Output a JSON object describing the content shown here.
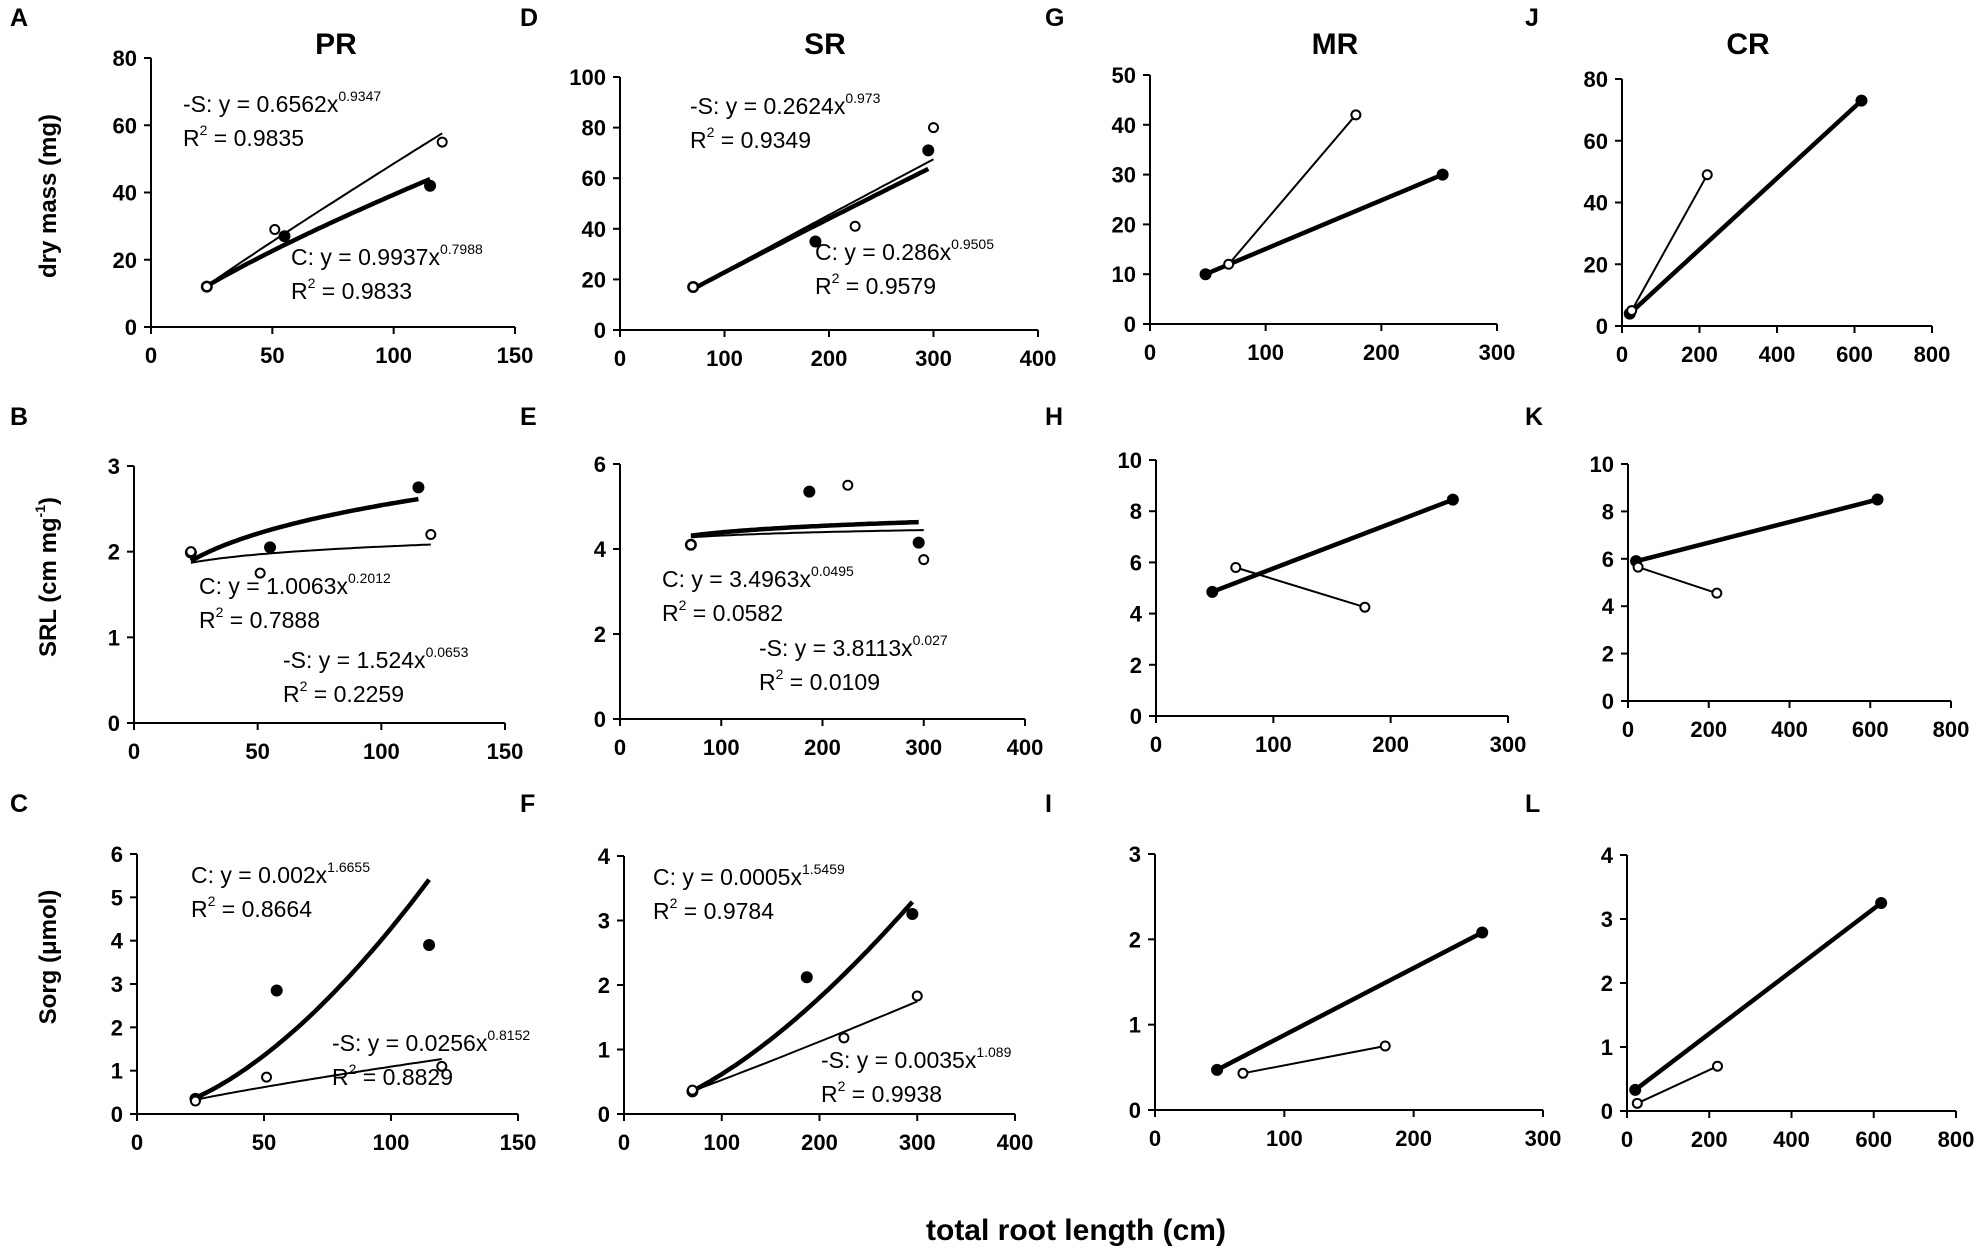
{
  "figure": {
    "xlabel": "total root length (cm)",
    "row_ylabels": [
      "dry mass (mg)",
      "SRL (cm mg-1)",
      "Sorg (μmol)"
    ],
    "column_titles": [
      "PR",
      "SR",
      "MR",
      "CR"
    ]
  },
  "chart_data": [
    {
      "id": "A",
      "type": "scatter",
      "letter": "A",
      "title": "PR",
      "ylabel": "dry mass (mg)",
      "xlim": [
        0,
        150
      ],
      "xticks": [
        0,
        50,
        100,
        150
      ],
      "ylim": [
        0,
        80
      ],
      "yticks": [
        0,
        20,
        40,
        60,
        80
      ],
      "series": [
        {
          "name": "C",
          "marker": "filled",
          "x": [
            23,
            55,
            115
          ],
          "y": [
            12,
            27,
            42
          ],
          "fit": {
            "kind": "power",
            "a": 0.9937,
            "b": 0.7988,
            "x_range": [
              23,
              115
            ]
          }
        },
        {
          "name": "-S",
          "marker": "open",
          "x": [
            23,
            51,
            120
          ],
          "y": [
            12,
            29,
            55
          ],
          "fit": {
            "kind": "power",
            "a": 0.6562,
            "b": 0.9347,
            "x_range": [
              23,
              120
            ]
          }
        }
      ],
      "annotations": [
        {
          "series": "-S",
          "line1_pre": "-S: y = 0.6562x",
          "exp": "0.9347",
          "line2_pre": "R",
          "line2_post": " = 0.9835"
        },
        {
          "series": "C",
          "line1_pre": "C: y = 0.9937x",
          "exp": "0.7988",
          "line2_pre": "R",
          "line2_post": " = 0.9833"
        }
      ]
    },
    {
      "id": "B",
      "type": "scatter",
      "letter": "B",
      "title": "",
      "ylabel": "SRL (cm mg-1)",
      "xlim": [
        0,
        150
      ],
      "xticks": [
        0,
        50,
        100,
        150
      ],
      "ylim": [
        0,
        3
      ],
      "yticks": [
        0,
        1,
        2,
        3
      ],
      "series": [
        {
          "name": "C",
          "marker": "filled",
          "x": [
            23,
            55,
            115
          ],
          "y": [
            1.99,
            2.05,
            2.75
          ],
          "fit": {
            "kind": "power",
            "a": 1.0063,
            "b": 0.2012,
            "x_range": [
              23,
              115
            ]
          }
        },
        {
          "name": "-S",
          "marker": "open",
          "x": [
            23,
            51,
            120
          ],
          "y": [
            2.0,
            1.75,
            2.2
          ],
          "fit": {
            "kind": "power",
            "a": 1.524,
            "b": 0.0653,
            "x_range": [
              23,
              120
            ]
          }
        }
      ],
      "annotations": [
        {
          "series": "C",
          "line1_pre": "C: y = 1.0063x",
          "exp": "0.2012",
          "line2_pre": "R",
          "line2_post": " = 0.7888"
        },
        {
          "series": "-S",
          "line1_pre": "-S: y = 1.524x",
          "exp": "0.0653",
          "line2_pre": "R",
          "line2_post": " = 0.2259"
        }
      ]
    },
    {
      "id": "C",
      "type": "scatter",
      "letter": "C",
      "title": "",
      "ylabel": "Sorg (μmol)",
      "xlim": [
        0,
        150
      ],
      "xticks": [
        0,
        50,
        100,
        150
      ],
      "ylim": [
        0,
        6
      ],
      "yticks": [
        0,
        1,
        2,
        3,
        4,
        5,
        6
      ],
      "series": [
        {
          "name": "C",
          "marker": "filled",
          "x": [
            23,
            55,
            115
          ],
          "y": [
            0.35,
            2.85,
            3.9
          ],
          "fit": {
            "kind": "power",
            "a": 0.002,
            "b": 1.6655,
            "x_range": [
              23,
              115
            ]
          }
        },
        {
          "name": "-S",
          "marker": "open",
          "x": [
            23,
            51,
            120
          ],
          "y": [
            0.3,
            0.85,
            1.1
          ],
          "fit": {
            "kind": "power",
            "a": 0.0256,
            "b": 0.8152,
            "x_range": [
              23,
              120
            ]
          }
        }
      ],
      "annotations": [
        {
          "series": "C",
          "line1_pre": "C: y = 0.002x",
          "exp": "1.6655",
          "line2_pre": "R",
          "line2_post": " = 0.8664"
        },
        {
          "series": "-S",
          "line1_pre": "-S: y = 0.0256x",
          "exp": "0.8152",
          "line2_pre": "R",
          "line2_post": " = 0.8829"
        }
      ]
    },
    {
      "id": "D",
      "type": "scatter",
      "letter": "D",
      "title": "SR",
      "ylabel": "",
      "xlim": [
        0,
        400
      ],
      "xticks": [
        0,
        100,
        200,
        300,
        400
      ],
      "ylim": [
        0,
        100
      ],
      "yticks": [
        0,
        20,
        40,
        60,
        80,
        100
      ],
      "series": [
        {
          "name": "C",
          "marker": "filled",
          "x": [
            70,
            187,
            295
          ],
          "y": [
            17,
            35,
            71
          ],
          "fit": {
            "kind": "power",
            "a": 0.286,
            "b": 0.9505,
            "x_range": [
              70,
              295
            ]
          }
        },
        {
          "name": "-S",
          "marker": "open",
          "x": [
            70,
            225,
            300
          ],
          "y": [
            17,
            41,
            80
          ],
          "fit": {
            "kind": "power",
            "a": 0.2624,
            "b": 0.973,
            "x_range": [
              70,
              300
            ]
          }
        }
      ],
      "annotations": [
        {
          "series": "-S",
          "line1_pre": "-S: y = 0.2624x",
          "exp": "0.973",
          "line2_pre": "R",
          "line2_post": " = 0.9349"
        },
        {
          "series": "C",
          "line1_pre": "C: y = 0.286x",
          "exp": "0.9505",
          "line2_pre": "R",
          "line2_post": " = 0.9579"
        }
      ]
    },
    {
      "id": "E",
      "type": "scatter",
      "letter": "E",
      "title": "",
      "ylabel": "",
      "xlim": [
        0,
        400
      ],
      "xticks": [
        0,
        100,
        200,
        300,
        400
      ],
      "ylim": [
        0,
        6
      ],
      "yticks": [
        0,
        2,
        4,
        6
      ],
      "series": [
        {
          "name": "C",
          "marker": "filled",
          "x": [
            70,
            187,
            295
          ],
          "y": [
            4.1,
            5.35,
            4.15
          ],
          "fit": {
            "kind": "power",
            "a": 3.4963,
            "b": 0.0495,
            "x_range": [
              70,
              295
            ]
          }
        },
        {
          "name": "-S",
          "marker": "open",
          "x": [
            70,
            225,
            300
          ],
          "y": [
            4.1,
            5.5,
            3.75
          ],
          "fit": {
            "kind": "power",
            "a": 3.8113,
            "b": 0.027,
            "x_range": [
              70,
              300
            ]
          }
        }
      ],
      "annotations": [
        {
          "series": "C",
          "line1_pre": "C: y = 3.4963x",
          "exp": "0.0495",
          "line2_pre": "R",
          "line2_post": " = 0.0582"
        },
        {
          "series": "-S",
          "line1_pre": "-S: y = 3.8113x",
          "exp": "0.027",
          "line2_pre": "R",
          "line2_post": " = 0.0109"
        }
      ]
    },
    {
      "id": "F",
      "type": "scatter",
      "letter": "F",
      "title": "",
      "ylabel": "",
      "xlim": [
        0,
        400
      ],
      "xticks": [
        0,
        100,
        200,
        300,
        400
      ],
      "ylim": [
        0,
        4
      ],
      "yticks": [
        0,
        1,
        2,
        3,
        4
      ],
      "series": [
        {
          "name": "C",
          "marker": "filled",
          "x": [
            70,
            187,
            295
          ],
          "y": [
            0.35,
            2.12,
            3.1
          ],
          "fit": {
            "kind": "power",
            "a": 0.0005,
            "b": 1.5459,
            "x_range": [
              70,
              295
            ]
          }
        },
        {
          "name": "-S",
          "marker": "open",
          "x": [
            70,
            225,
            300
          ],
          "y": [
            0.37,
            1.18,
            1.83
          ],
          "fit": {
            "kind": "power",
            "a": 0.0035,
            "b": 1.089,
            "x_range": [
              70,
              300
            ]
          }
        }
      ],
      "annotations": [
        {
          "series": "C",
          "line1_pre": "C: y = 0.0005x",
          "exp": "1.5459",
          "line2_pre": "R",
          "line2_post": " = 0.9784"
        },
        {
          "series": "-S",
          "line1_pre": "-S: y = 0.0035x",
          "exp": "1.089",
          "line2_pre": "R",
          "line2_post": " = 0.9938"
        }
      ]
    },
    {
      "id": "G",
      "type": "line",
      "letter": "G",
      "title": "MR",
      "ylabel": "",
      "xlim": [
        0,
        300
      ],
      "xticks": [
        0,
        100,
        200,
        300
      ],
      "ylim": [
        0,
        50
      ],
      "yticks": [
        0,
        10,
        20,
        30,
        40,
        50
      ],
      "series": [
        {
          "name": "C",
          "marker": "filled",
          "x": [
            48,
            253
          ],
          "y": [
            10,
            30
          ]
        },
        {
          "name": "-S",
          "marker": "open",
          "x": [
            68,
            178
          ],
          "y": [
            12,
            42
          ]
        }
      ],
      "annotations": []
    },
    {
      "id": "H",
      "type": "line",
      "letter": "H",
      "title": "",
      "ylabel": "",
      "xlim": [
        0,
        300
      ],
      "xticks": [
        0,
        100,
        200,
        300
      ],
      "ylim": [
        0,
        10
      ],
      "yticks": [
        0,
        2,
        4,
        6,
        8,
        10
      ],
      "series": [
        {
          "name": "C",
          "marker": "filled",
          "x": [
            48,
            253
          ],
          "y": [
            4.85,
            8.45
          ]
        },
        {
          "name": "-S",
          "marker": "open",
          "x": [
            68,
            178
          ],
          "y": [
            5.8,
            4.25
          ]
        }
      ],
      "annotations": []
    },
    {
      "id": "I",
      "type": "line",
      "letter": "I",
      "title": "",
      "ylabel": "",
      "xlim": [
        0,
        300
      ],
      "xticks": [
        0,
        100,
        200,
        300
      ],
      "ylim": [
        0,
        3
      ],
      "yticks": [
        0,
        1,
        2,
        3
      ],
      "series": [
        {
          "name": "C",
          "marker": "filled",
          "x": [
            48,
            253
          ],
          "y": [
            0.47,
            2.08
          ]
        },
        {
          "name": "-S",
          "marker": "open",
          "x": [
            68,
            178
          ],
          "y": [
            0.43,
            0.75
          ]
        }
      ],
      "annotations": []
    },
    {
      "id": "J",
      "type": "line",
      "letter": "J",
      "title": "CR",
      "ylabel": "",
      "xlim": [
        0,
        800
      ],
      "xticks": [
        0,
        200,
        400,
        600,
        800
      ],
      "ylim": [
        0,
        80
      ],
      "yticks": [
        0,
        20,
        40,
        60,
        80
      ],
      "series": [
        {
          "name": "C",
          "marker": "filled",
          "x": [
            20,
            618
          ],
          "y": [
            4,
            73
          ]
        },
        {
          "name": "-S",
          "marker": "open",
          "x": [
            25,
            220
          ],
          "y": [
            5,
            49
          ]
        }
      ],
      "annotations": []
    },
    {
      "id": "K",
      "type": "line",
      "letter": "K",
      "title": "",
      "ylabel": "",
      "xlim": [
        0,
        800
      ],
      "xticks": [
        0,
        200,
        400,
        600,
        800
      ],
      "ylim": [
        0,
        10
      ],
      "yticks": [
        0,
        2,
        4,
        6,
        8,
        10
      ],
      "series": [
        {
          "name": "C",
          "marker": "filled",
          "x": [
            20,
            618
          ],
          "y": [
            5.9,
            8.5
          ]
        },
        {
          "name": "-S",
          "marker": "open",
          "x": [
            25,
            220
          ],
          "y": [
            5.65,
            4.55
          ]
        }
      ],
      "annotations": []
    },
    {
      "id": "L",
      "type": "line",
      "letter": "L",
      "title": "",
      "ylabel": "",
      "xlim": [
        0,
        800
      ],
      "xticks": [
        0,
        200,
        400,
        600,
        800
      ],
      "ylim": [
        0,
        4
      ],
      "yticks": [
        0,
        1,
        2,
        3,
        4
      ],
      "series": [
        {
          "name": "C",
          "marker": "filled",
          "x": [
            20,
            618
          ],
          "y": [
            0.33,
            3.25
          ]
        },
        {
          "name": "-S",
          "marker": "open",
          "x": [
            25,
            220
          ],
          "y": [
            0.12,
            0.7
          ]
        }
      ],
      "annotations": []
    }
  ]
}
